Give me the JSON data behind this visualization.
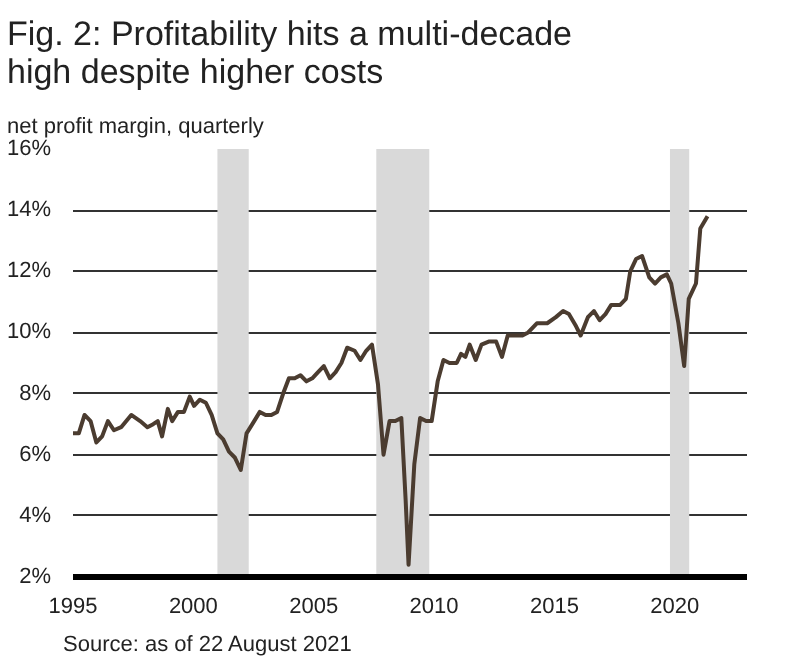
{
  "chart_data": {
    "type": "line",
    "title": "Fig. 2: Profitability hits a multi-decade high despite higher costs",
    "subtitle": "net profit margin, quarterly",
    "x": [
      1995.0,
      1995.24,
      1995.48,
      1995.73,
      1995.97,
      1996.21,
      1996.45,
      1996.7,
      1997.0,
      1997.42,
      1997.79,
      1998.09,
      1998.33,
      1998.52,
      1998.7,
      1998.94,
      1999.12,
      1999.36,
      1999.61,
      1999.85,
      2000.03,
      2000.27,
      2000.52,
      2000.76,
      2001.0,
      2001.24,
      2001.48,
      2001.73,
      2001.97,
      2002.21,
      2002.45,
      2002.76,
      2003.0,
      2003.24,
      2003.48,
      2003.73,
      2003.97,
      2004.21,
      2004.45,
      2004.7,
      2004.94,
      2005.18,
      2005.42,
      2005.67,
      2005.91,
      2006.15,
      2006.39,
      2006.7,
      2006.94,
      2007.18,
      2007.42,
      2007.67,
      2007.9,
      2008.15,
      2008.39,
      2008.64,
      2008.82,
      2008.94,
      2009.18,
      2009.42,
      2009.67,
      2009.9,
      2010.15,
      2010.39,
      2010.64,
      2010.94,
      2011.12,
      2011.3,
      2011.48,
      2011.73,
      2011.97,
      2012.27,
      2012.58,
      2012.82,
      2013.06,
      2013.36,
      2013.67,
      2013.91,
      2014.27,
      2014.7,
      2015.06,
      2015.36,
      2015.6,
      2015.9,
      2016.09,
      2016.39,
      2016.64,
      2016.88,
      2017.12,
      2017.36,
      2017.73,
      2017.97,
      2018.15,
      2018.39,
      2018.64,
      2018.94,
      2019.18,
      2019.42,
      2019.67,
      2019.85,
      2020.15,
      2020.39,
      2020.58,
      2020.76,
      2020.88,
      2021.06,
      2021.36
    ],
    "series": [
      {
        "color": "#4b3c30",
        "values": [
          6.7,
          6.7,
          7.3,
          7.1,
          6.4,
          6.6,
          7.1,
          6.8,
          6.9,
          7.3,
          7.1,
          6.9,
          7.0,
          7.1,
          6.6,
          7.5,
          7.1,
          7.4,
          7.4,
          7.9,
          7.6,
          7.8,
          7.7,
          7.3,
          6.7,
          6.5,
          6.1,
          5.9,
          5.5,
          6.7,
          7.0,
          7.4,
          7.3,
          7.3,
          7.4,
          8.0,
          8.5,
          8.5,
          8.6,
          8.4,
          8.5,
          8.7,
          8.9,
          8.5,
          8.7,
          9.0,
          9.5,
          9.4,
          9.1,
          9.4,
          9.6,
          8.3,
          6.0,
          7.1,
          7.1,
          7.2,
          4.5,
          2.4,
          5.7,
          7.2,
          7.1,
          7.1,
          8.4,
          9.1,
          9.0,
          9.0,
          9.3,
          9.2,
          9.6,
          9.1,
          9.6,
          9.7,
          9.7,
          9.2,
          9.9,
          9.9,
          9.9,
          10.0,
          10.3,
          10.3,
          10.5,
          10.7,
          10.6,
          10.2,
          9.9,
          10.5,
          10.7,
          10.4,
          10.6,
          10.9,
          10.9,
          11.1,
          12.0,
          12.4,
          12.5,
          11.8,
          11.6,
          11.8,
          11.9,
          11.6,
          10.3,
          8.9,
          11.1,
          11.4,
          11.6,
          13.4,
          13.8
        ]
      }
    ],
    "xlim": [
      1995,
      2023
    ],
    "xticks": [
      1995,
      2000,
      2005,
      2010,
      2015,
      2020
    ],
    "ylim": [
      2,
      16
    ],
    "yticks": [
      {
        "value": 2,
        "label": "2%"
      },
      {
        "value": 4,
        "label": "4%"
      },
      {
        "value": 6,
        "label": "6%"
      },
      {
        "value": 8,
        "label": "8%"
      },
      {
        "value": 10,
        "label": "10%"
      },
      {
        "value": 12,
        "label": "12%"
      },
      {
        "value": 14,
        "label": "14%"
      },
      {
        "value": 16,
        "label": "16%"
      }
    ],
    "grid": "y",
    "line_style": "solid",
    "bands": [
      {
        "axis": "x",
        "from": 2001.0,
        "to": 2002.3,
        "color": "#d9d9d9"
      },
      {
        "axis": "x",
        "from": 2007.6,
        "to": 2009.8,
        "color": "#d9d9d9"
      },
      {
        "axis": "x",
        "from": 2019.8,
        "to": 2020.6,
        "color": "#d9d9d9"
      }
    ],
    "annotations": [
      "Source: as of 22 August 2021"
    ]
  }
}
